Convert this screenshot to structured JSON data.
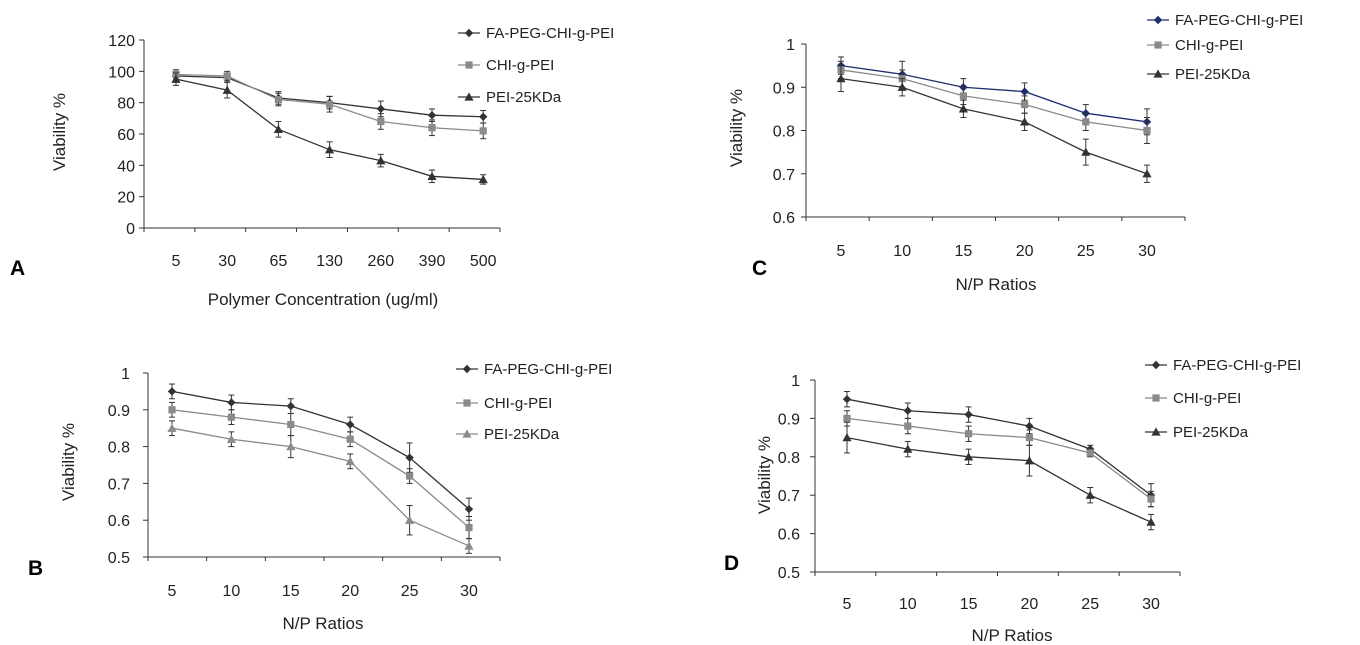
{
  "chart_data": [
    {
      "panel": "A",
      "type": "line",
      "xlabel": "Polymer Concentration (ug/ml)",
      "ylabel": "Viability %",
      "categories": [
        "5",
        "30",
        "65",
        "130",
        "260",
        "390",
        "500"
      ],
      "yticks": [
        "0",
        "20",
        "40",
        "60",
        "80",
        "100",
        "120"
      ],
      "ylim": [
        0,
        120
      ],
      "grid": false,
      "legend_position": "top-right",
      "series": [
        {
          "name": "FA-PEG-CHI-g-PEI",
          "marker": "diamond",
          "color": "#333333",
          "values": [
            97,
            96,
            83,
            80,
            76,
            72,
            71
          ],
          "errors": [
            3,
            3,
            4,
            4,
            5,
            4,
            4
          ]
        },
        {
          "name": "CHI-g-PEI",
          "marker": "square",
          "color": "#8a8a8a",
          "values": [
            98,
            97,
            82,
            79,
            68,
            64,
            62
          ],
          "errors": [
            3,
            3,
            4,
            5,
            5,
            5,
            5
          ]
        },
        {
          "name": "PEI-25KDa",
          "marker": "triangle",
          "color": "#333333",
          "values": [
            95,
            88,
            63,
            50,
            43,
            33,
            31
          ],
          "errors": [
            4,
            5,
            5,
            5,
            4,
            4,
            3
          ]
        }
      ]
    },
    {
      "panel": "B",
      "type": "line",
      "xlabel": "N/P Ratios",
      "ylabel": "Viability %",
      "categories": [
        "5",
        "10",
        "15",
        "20",
        "25",
        "30"
      ],
      "yticks": [
        "0.5",
        "0.6",
        "0.7",
        "0.8",
        "0.9",
        "1"
      ],
      "ylim": [
        0.5,
        1.0
      ],
      "grid": false,
      "legend_position": "top-right",
      "series": [
        {
          "name": "FA-PEG-CHI-g-PEI",
          "marker": "diamond",
          "color": "#333333",
          "values": [
            0.95,
            0.92,
            0.91,
            0.86,
            0.77,
            0.63
          ],
          "errors": [
            0.02,
            0.02,
            0.02,
            0.02,
            0.04,
            0.03
          ]
        },
        {
          "name": "CHI-g-PEI",
          "marker": "square",
          "color": "#8a8a8a",
          "values": [
            0.9,
            0.88,
            0.86,
            0.82,
            0.72,
            0.58
          ],
          "errors": [
            0.02,
            0.02,
            0.03,
            0.02,
            0.02,
            0.03
          ]
        },
        {
          "name": "PEI-25KDa",
          "marker": "triangle",
          "color": "#8a8a8a",
          "values": [
            0.85,
            0.82,
            0.8,
            0.76,
            0.6,
            0.53
          ],
          "errors": [
            0.02,
            0.02,
            0.03,
            0.02,
            0.04,
            0.02
          ]
        }
      ]
    },
    {
      "panel": "C",
      "type": "line",
      "xlabel": "N/P Ratios",
      "ylabel": "Viability %",
      "categories": [
        "5",
        "10",
        "15",
        "20",
        "25",
        "30"
      ],
      "yticks": [
        "0.6",
        "0.7",
        "0.8",
        "0.9",
        "1"
      ],
      "ylim": [
        0.6,
        1.0
      ],
      "grid": false,
      "legend_position": "top-right",
      "series": [
        {
          "name": "FA-PEG-CHI-g-PEI",
          "marker": "diamond",
          "color": "#1f2f6e",
          "values": [
            0.95,
            0.93,
            0.9,
            0.89,
            0.84,
            0.82
          ],
          "errors": [
            0.02,
            0.03,
            0.02,
            0.02,
            0.02,
            0.03
          ]
        },
        {
          "name": "CHI-g-PEI",
          "marker": "square",
          "color": "#8a8a8a",
          "values": [
            0.94,
            0.92,
            0.88,
            0.86,
            0.82,
            0.8
          ],
          "errors": [
            0.02,
            0.02,
            0.02,
            0.02,
            0.02,
            0.03
          ]
        },
        {
          "name": "PEI-25KDa",
          "marker": "triangle",
          "color": "#333333",
          "values": [
            0.92,
            0.9,
            0.85,
            0.82,
            0.75,
            0.7
          ],
          "errors": [
            0.03,
            0.02,
            0.02,
            0.02,
            0.03,
            0.02
          ]
        }
      ]
    },
    {
      "panel": "D",
      "type": "line",
      "xlabel": "N/P Ratios",
      "ylabel": "Viability %",
      "categories": [
        "5",
        "10",
        "15",
        "20",
        "25",
        "30"
      ],
      "yticks": [
        "0.5",
        "0.6",
        "0.7",
        "0.8",
        "0.9",
        "1"
      ],
      "ylim": [
        0.5,
        1.0
      ],
      "grid": false,
      "legend_position": "top-right",
      "series": [
        {
          "name": "FA-PEG-CHI-g-PEI",
          "marker": "diamond",
          "color": "#333333",
          "values": [
            0.95,
            0.92,
            0.91,
            0.88,
            0.82,
            0.7
          ],
          "errors": [
            0.02,
            0.02,
            0.02,
            0.02,
            0.01,
            0.03
          ]
        },
        {
          "name": "CHI-g-PEI",
          "marker": "square",
          "color": "#8a8a8a",
          "values": [
            0.9,
            0.88,
            0.86,
            0.85,
            0.81,
            0.69
          ],
          "errors": [
            0.02,
            0.02,
            0.02,
            0.02,
            0.01,
            0.02
          ]
        },
        {
          "name": "PEI-25KDa",
          "marker": "triangle",
          "color": "#333333",
          "values": [
            0.85,
            0.82,
            0.8,
            0.79,
            0.7,
            0.63
          ],
          "errors": [
            0.04,
            0.02,
            0.02,
            0.04,
            0.02,
            0.02
          ]
        }
      ]
    }
  ]
}
